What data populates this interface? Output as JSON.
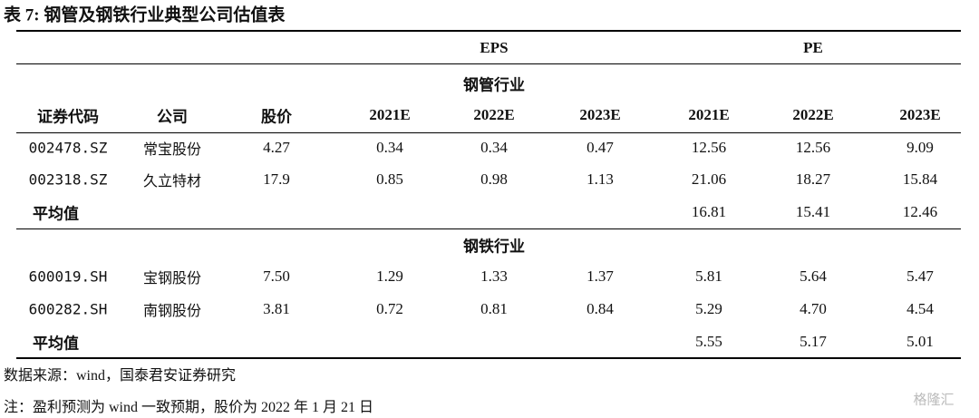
{
  "title": "表 7:  钢管及钢铁行业典型公司估值表",
  "header": {
    "groups": [
      "EPS",
      "PE"
    ],
    "columns": [
      "证券代码",
      "公司",
      "股价",
      "2021E",
      "2022E",
      "2023E",
      "2021E",
      "2022E",
      "2023E"
    ]
  },
  "sections": [
    {
      "name": "钢管行业",
      "rows": [
        [
          "002478.SZ",
          "常宝股份",
          "4.27",
          "0.34",
          "0.34",
          "0.47",
          "12.56",
          "12.56",
          "9.09"
        ],
        [
          "002318.SZ",
          "久立特材",
          "17.9",
          "0.85",
          "0.98",
          "1.13",
          "21.06",
          "18.27",
          "15.84"
        ]
      ],
      "average": {
        "label": "平均值",
        "values": [
          "16.81",
          "15.41",
          "12.46"
        ]
      }
    },
    {
      "name": "钢铁行业",
      "rows": [
        [
          "600019.SH",
          "宝钢股份",
          "7.50",
          "1.29",
          "1.33",
          "1.37",
          "5.81",
          "5.64",
          "5.47"
        ],
        [
          "600282.SH",
          "南钢股份",
          "3.81",
          "0.72",
          "0.81",
          "0.84",
          "5.29",
          "4.70",
          "4.54"
        ]
      ],
      "average": {
        "label": "平均值",
        "values": [
          "5.55",
          "5.17",
          "5.01"
        ]
      }
    }
  ],
  "notes": [
    "数据来源：wind，国泰君安证券研究",
    "注：盈利预测为 wind 一致预期，股价为 2022 年 1 月 21 日"
  ],
  "watermark": "格隆汇"
}
